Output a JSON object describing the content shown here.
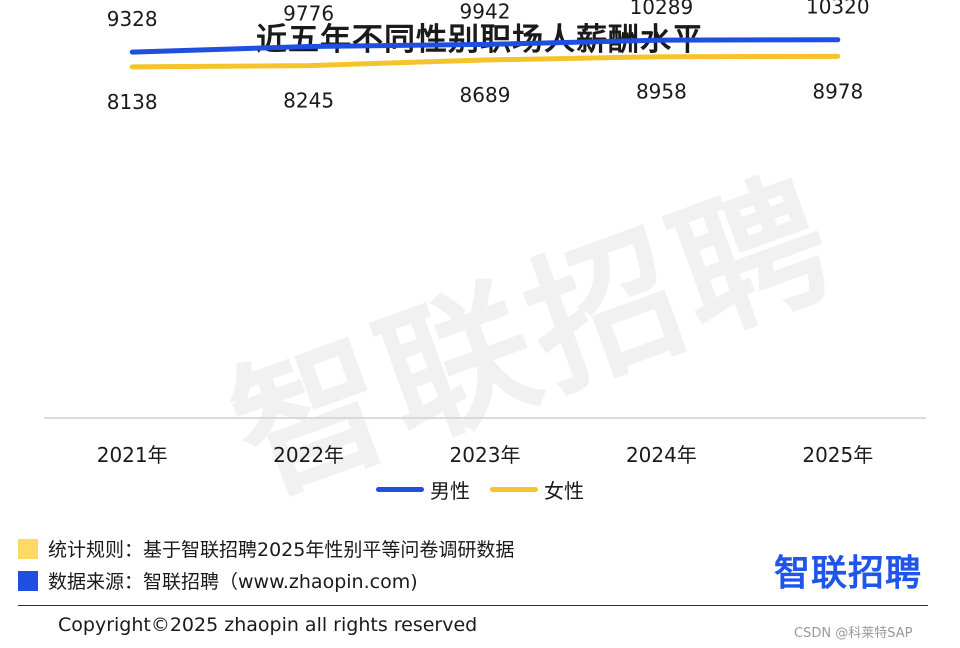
{
  "title": "近五年不同性别职场人薪酬水平",
  "watermark": "智联招聘",
  "colors": {
    "male": "#1f4fe0",
    "female": "#f5c42c",
    "note_rule_box": "#ffd966",
    "note_source_box": "#1f4fe0",
    "logo": "#1f55e8"
  },
  "chart_data": {
    "type": "line",
    "title": "近五年不同性别职场人薪酬水平",
    "categories": [
      "2021年",
      "2022年",
      "2023年",
      "2024年",
      "2025年"
    ],
    "series": [
      {
        "name": "男性",
        "values": [
          9328,
          9776,
          9942,
          10289,
          10320
        ],
        "color": "#1f4fe0",
        "label_position": "above"
      },
      {
        "name": "女性",
        "values": [
          8138,
          8245,
          8689,
          8958,
          8978
        ],
        "color": "#f5c42c",
        "label_position": "below"
      }
    ],
    "ylim": [
      -20000,
      13500
    ],
    "grid": false,
    "legend": "bottom"
  },
  "notes": {
    "rule": "统计规则：基于智联招聘2025年性别平等问卷调研数据",
    "source": "数据来源：智联招聘（www.zhaopin.com)"
  },
  "logo": "智联招聘",
  "copyright": "Copyright©2025 zhaopin all rights reserved",
  "credit": "CSDN @科莱特SAP"
}
